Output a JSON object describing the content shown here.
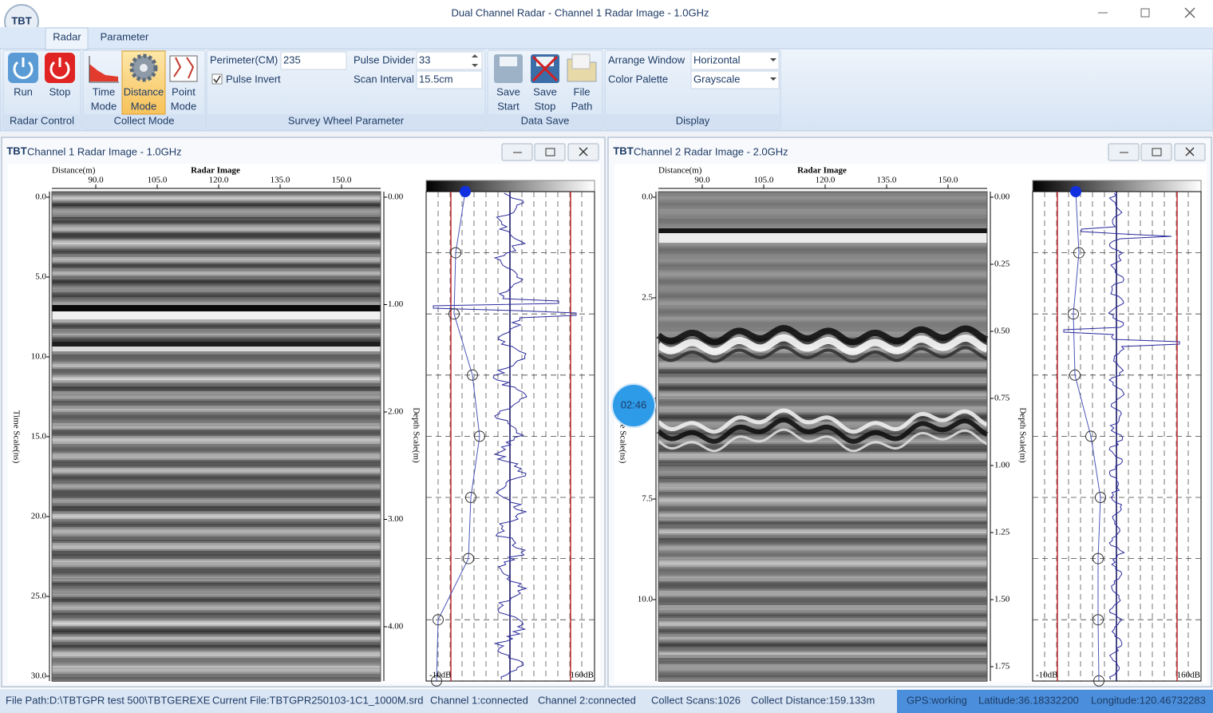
{
  "window": {
    "logo": "TBT",
    "title": "Dual Channel Radar - Channel 1 Radar Image - 1.0GHz"
  },
  "tabs": [
    "Radar",
    "Parameter"
  ],
  "ribbon": {
    "radar_control": {
      "label": "Radar Control",
      "buttons": [
        [
          "Run"
        ],
        [
          "Stop"
        ]
      ]
    },
    "collect_mode": {
      "label": "Collect Mode",
      "buttons": [
        [
          "Time",
          "Mode"
        ],
        [
          "Distance",
          "Mode"
        ],
        [
          "Point",
          "Mode"
        ]
      ]
    },
    "survey_wheel": {
      "label": "Survey Wheel Parameter",
      "perimeter_label": "Perimeter(CM)",
      "perimeter_value": "235",
      "pulse_invert": "Pulse Invert",
      "pulse_divider_label": "Pulse Divider",
      "pulse_divider_value": "33",
      "scan_interval_label": "Scan Interval",
      "scan_interval_value": "15.5cm"
    },
    "data_save": {
      "label": "Data Save",
      "buttons": [
        [
          "Save",
          "Start"
        ],
        [
          "Save",
          "Stop"
        ],
        [
          "File",
          "Path"
        ]
      ]
    },
    "display": {
      "label": "Display",
      "arrange_label": "Arrange Window",
      "arrange_value": "Horizontal",
      "palette_label": "Color Palette",
      "palette_value": "Grayscale"
    }
  },
  "panels": [
    {
      "icon": "TBT",
      "title": "Channel 1 Radar Image - 1.0GHz",
      "distance_label": "Distance(m)",
      "image_label": "Radar Image",
      "x_ticks": [
        "90.0",
        "105.0",
        "120.0",
        "135.0",
        "150.0"
      ],
      "time_ticks": [
        "0.0",
        "5.0",
        "10.0",
        "15.0",
        "20.0",
        "25.0",
        "30.0"
      ],
      "time_label": "Time Scale(ns)",
      "depth_ticks": [
        "0.00",
        "1.00",
        "2.00",
        "3.00",
        "4.00"
      ],
      "depth_label": "Depth Scale(m)",
      "gain_min": "-10dB",
      "gain_max": "160dB"
    },
    {
      "icon": "TBT",
      "title": "Channel 2 Radar Image - 2.0GHz",
      "distance_label": "Distance(m)",
      "image_label": "Radar Image",
      "x_ticks": [
        "90.0",
        "105.0",
        "120.0",
        "135.0",
        "150.0"
      ],
      "time_ticks": [
        "0.0",
        "2.5",
        null,
        "7.5",
        "10.0"
      ],
      "time_label": "Time Scale(ns)",
      "depth_ticks": [
        "0.00",
        "0.25",
        "0.50",
        "0.75",
        "1.00",
        "1.25",
        "1.50",
        "1.75"
      ],
      "depth_label": "Depth Scale(m)",
      "gain_min": "-10dB",
      "gain_max": "160dB"
    }
  ],
  "timer": "02:46",
  "status": [
    "File Path:D:\\TBTGPR test 500\\TBTGEREXE",
    "Current File:TBTGPR250103-1C1_1000M.srd",
    "Channel 1:connected",
    "Channel 2:connected",
    "Collect Scans:1026",
    "Collect Distance:159.133m"
  ],
  "gps": [
    "GPS:working",
    "Latitude:36.18332200",
    "Longitude:120.46732283"
  ]
}
